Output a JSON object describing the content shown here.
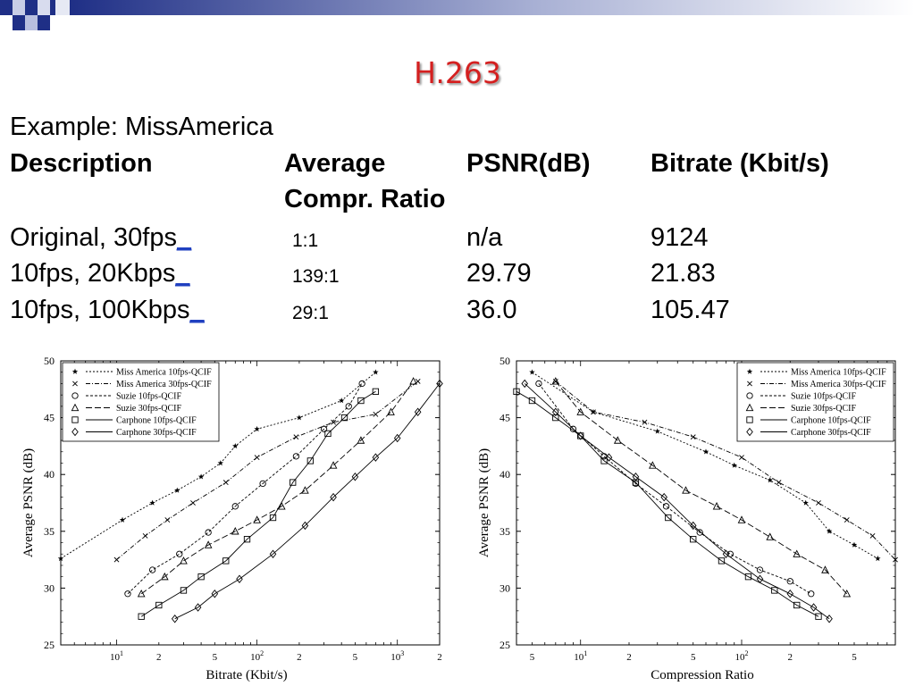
{
  "slide": {
    "title": "H.263",
    "example": "Example: MissAmerica",
    "headers": {
      "description": "Description",
      "ratio_line1": "Average",
      "ratio_line2": "Compr. Ratio",
      "psnr": "PSNR(dB)",
      "bitrate": "Bitrate (Kbit/s)"
    },
    "rows": [
      {
        "description": "Original, 30fps",
        "link": "_",
        "ratio": "1:1",
        "psnr": "n/a",
        "bitrate": "9124"
      },
      {
        "description": "10fps, 20Kbps",
        "link": "_",
        "ratio": "139:1",
        "psnr": "29.79",
        "bitrate": "21.83"
      },
      {
        "description": "10fps, 100Kbps",
        "link": "_",
        "ratio": "29:1",
        "psnr": "36.0",
        "bitrate": "105.47"
      }
    ]
  },
  "colors": {
    "title": "#d42020",
    "corner": "#1f2f86",
    "link": "#2040c0"
  },
  "chart_data": [
    {
      "type": "line",
      "xscale": "log",
      "xlim": [
        4,
        2000
      ],
      "ylim": [
        25,
        50
      ],
      "xlabel": "Bitrate (Kbit/s)",
      "ylabel": "Average PSNR (dB)",
      "yticks": [
        25,
        30,
        35,
        40,
        45,
        50
      ],
      "xtick_labels": [
        {
          "v": 10,
          "t": "10",
          "sup": "1"
        },
        {
          "v": 20,
          "t": "2"
        },
        {
          "v": 50,
          "t": "5"
        },
        {
          "v": 100,
          "t": "10",
          "sup": "2"
        },
        {
          "v": 200,
          "t": "2"
        },
        {
          "v": 500,
          "t": "5"
        },
        {
          "v": 1000,
          "t": "10",
          "sup": "3"
        },
        {
          "v": 2000,
          "t": "2"
        }
      ],
      "legend_position": "top-left",
      "series": [
        {
          "name": "Miss America 10fps-QCIF",
          "marker": "star",
          "dash": "2,2",
          "points": [
            [
              4,
              32.6
            ],
            [
              11,
              36
            ],
            [
              18,
              37.5
            ],
            [
              27,
              38.6
            ],
            [
              40,
              39.8
            ],
            [
              55,
              41
            ],
            [
              70,
              42.5
            ],
            [
              100,
              44
            ],
            [
              200,
              45
            ],
            [
              400,
              46.5
            ],
            [
              700,
              49
            ]
          ]
        },
        {
          "name": "Miss America 30fps-QCIF",
          "marker": "x",
          "dash": "5,2,1,2",
          "points": [
            [
              10,
              32.5
            ],
            [
              16,
              34.6
            ],
            [
              23,
              36
            ],
            [
              35,
              37.5
            ],
            [
              60,
              39.3
            ],
            [
              100,
              41.5
            ],
            [
              190,
              43.3
            ],
            [
              350,
              44.6
            ],
            [
              700,
              45.3
            ],
            [
              1400,
              48.2
            ]
          ]
        },
        {
          "name": "Suzie 10fps-QCIF",
          "marker": "circle",
          "dash": "3,2",
          "points": [
            [
              12,
              29.5
            ],
            [
              18,
              31.6
            ],
            [
              28,
              33
            ],
            [
              45,
              34.9
            ],
            [
              70,
              37.2
            ],
            [
              110,
              39.2
            ],
            [
              190,
              41.6
            ],
            [
              300,
              44
            ],
            [
              450,
              46
            ],
            [
              560,
              48
            ]
          ]
        },
        {
          "name": "Suzie 30fps-QCIF",
          "marker": "triangle",
          "dash": "7,3",
          "points": [
            [
              15,
              29.5
            ],
            [
              22,
              31
            ],
            [
              30,
              32.4
            ],
            [
              45,
              33.8
            ],
            [
              70,
              35
            ],
            [
              100,
              36
            ],
            [
              150,
              37.2
            ],
            [
              220,
              38.6
            ],
            [
              350,
              40.8
            ],
            [
              550,
              43
            ],
            [
              900,
              45.5
            ],
            [
              1300,
              48.2
            ]
          ]
        },
        {
          "name": "Carphone 10fps-QCIF",
          "marker": "square",
          "dash": "",
          "points": [
            [
              15,
              27.5
            ],
            [
              20,
              28.5
            ],
            [
              30,
              29.8
            ],
            [
              40,
              31
            ],
            [
              60,
              32.4
            ],
            [
              85,
              34.3
            ],
            [
              130,
              36.2
            ],
            [
              180,
              39.3
            ],
            [
              240,
              41.2
            ],
            [
              320,
              43.6
            ],
            [
              420,
              45
            ],
            [
              550,
              46.5
            ],
            [
              700,
              47.3
            ]
          ]
        },
        {
          "name": "Carphone 30fps-QCIF",
          "marker": "diamond",
          "dash": "",
          "points": [
            [
              26,
              27.3
            ],
            [
              38,
              28.3
            ],
            [
              50,
              29.5
            ],
            [
              75,
              30.8
            ],
            [
              130,
              33
            ],
            [
              220,
              35.5
            ],
            [
              350,
              38
            ],
            [
              500,
              39.8
            ],
            [
              700,
              41.5
            ],
            [
              1000,
              43.2
            ],
            [
              1400,
              45.5
            ],
            [
              2000,
              48
            ]
          ]
        }
      ]
    },
    {
      "type": "line",
      "xscale": "log",
      "xlim": [
        4,
        900
      ],
      "ylim": [
        25,
        50
      ],
      "xlabel": "Compression Ratio",
      "ylabel": "Average PSNR (dB)",
      "yticks": [
        25,
        30,
        35,
        40,
        45,
        50
      ],
      "xtick_labels": [
        {
          "v": 5,
          "t": "5"
        },
        {
          "v": 10,
          "t": "10",
          "sup": "1"
        },
        {
          "v": 20,
          "t": "2"
        },
        {
          "v": 50,
          "t": "5"
        },
        {
          "v": 100,
          "t": "10",
          "sup": "2"
        },
        {
          "v": 200,
          "t": "2"
        },
        {
          "v": 500,
          "t": "5"
        }
      ],
      "legend_position": "top-right",
      "series": [
        {
          "name": "Miss America 10fps-QCIF",
          "marker": "star",
          "dash": "2,2",
          "points": [
            [
              5,
              49
            ],
            [
              12,
              45.5
            ],
            [
              30,
              43.8
            ],
            [
              60,
              42
            ],
            [
              90,
              40.8
            ],
            [
              150,
              39.5
            ],
            [
              250,
              37.5
            ],
            [
              350,
              35
            ],
            [
              500,
              33.8
            ],
            [
              700,
              32.6
            ]
          ]
        },
        {
          "name": "Miss America 30fps-QCIF",
          "marker": "x",
          "dash": "5,2,1,2",
          "points": [
            [
              7,
              48.2
            ],
            [
              12,
              45.5
            ],
            [
              25,
              44.6
            ],
            [
              50,
              43.3
            ],
            [
              100,
              41.5
            ],
            [
              170,
              39.3
            ],
            [
              300,
              37.5
            ],
            [
              450,
              36
            ],
            [
              650,
              34.6
            ],
            [
              900,
              32.5
            ]
          ]
        },
        {
          "name": "Suzie 10fps-QCIF",
          "marker": "circle",
          "dash": "3,2",
          "points": [
            [
              5.5,
              48
            ],
            [
              9,
              44
            ],
            [
              14,
              41.6
            ],
            [
              22,
              39.2
            ],
            [
              34,
              37.2
            ],
            [
              55,
              34.9
            ],
            [
              85,
              33
            ],
            [
              130,
              31.6
            ],
            [
              200,
              30.6
            ],
            [
              270,
              29.5
            ]
          ]
        },
        {
          "name": "Suzie 30fps-QCIF",
          "marker": "triangle",
          "dash": "7,3",
          "points": [
            [
              7,
              48.2
            ],
            [
              10,
              45.5
            ],
            [
              17,
              43
            ],
            [
              28,
              40.8
            ],
            [
              45,
              38.6
            ],
            [
              70,
              37.2
            ],
            [
              100,
              36
            ],
            [
              150,
              34.5
            ],
            [
              220,
              33
            ],
            [
              330,
              31.6
            ],
            [
              450,
              29.5
            ]
          ]
        },
        {
          "name": "Carphone 10fps-QCIF",
          "marker": "square",
          "dash": "",
          "points": [
            [
              4,
              47.3
            ],
            [
              5,
              46.5
            ],
            [
              7,
              45
            ],
            [
              10,
              43.4
            ],
            [
              14,
              41.2
            ],
            [
              22,
              39.3
            ],
            [
              35,
              36.2
            ],
            [
              50,
              34.3
            ],
            [
              75,
              32.4
            ],
            [
              110,
              31
            ],
            [
              160,
              29.8
            ],
            [
              220,
              28.5
            ],
            [
              300,
              27.5
            ]
          ]
        },
        {
          "name": "Carphone 30fps-QCIF",
          "marker": "diamond",
          "dash": "",
          "points": [
            [
              4.5,
              48
            ],
            [
              7,
              45.5
            ],
            [
              10,
              43.4
            ],
            [
              15,
              41.5
            ],
            [
              22,
              39.8
            ],
            [
              33,
              38
            ],
            [
              50,
              35.5
            ],
            [
              80,
              33
            ],
            [
              130,
              30.8
            ],
            [
              200,
              29.5
            ],
            [
              280,
              28.3
            ],
            [
              350,
              27.3
            ]
          ]
        }
      ]
    }
  ]
}
